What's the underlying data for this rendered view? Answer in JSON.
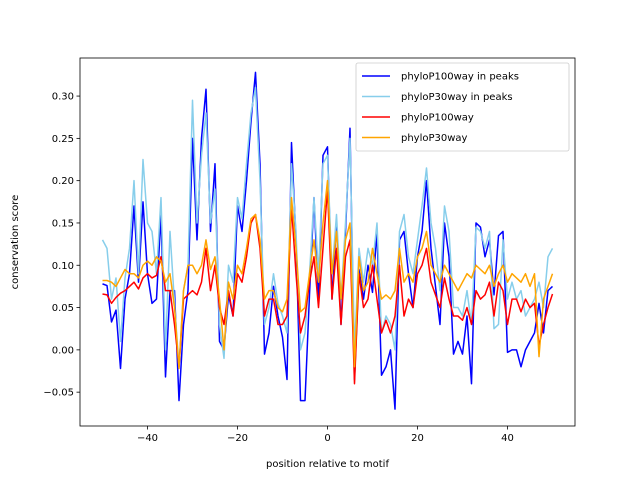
{
  "chart_data": {
    "type": "line",
    "title": "",
    "xlabel": "position relative to motif",
    "ylabel": "conservation score",
    "xlim": [
      -55,
      55
    ],
    "ylim": [
      -0.09,
      0.345
    ],
    "xticks": [
      -40,
      -20,
      0,
      20,
      40
    ],
    "xtick_labels": [
      "−40",
      "−20",
      "0",
      "20",
      "40"
    ],
    "yticks": [
      -0.05,
      0.0,
      0.05,
      0.1,
      0.15,
      0.2,
      0.25,
      0.3
    ],
    "ytick_labels": [
      "−0.05",
      "0.00",
      "0.05",
      "0.10",
      "0.15",
      "0.20",
      "0.25",
      "0.30"
    ],
    "grid": false,
    "legend_position": "top-right",
    "x_start": -50,
    "x_step": 1,
    "series": [
      {
        "name": "phyloP100way in peaks",
        "color": "#0000ff",
        "values": [
          0.078,
          0.076,
          0.033,
          0.047,
          -0.022,
          0.06,
          0.09,
          0.17,
          0.08,
          0.175,
          0.09,
          0.055,
          0.06,
          0.16,
          -0.032,
          0.07,
          0.07,
          -0.06,
          0.03,
          0.07,
          0.25,
          0.13,
          0.25,
          0.308,
          0.14,
          0.22,
          0.01,
          0.0,
          0.065,
          0.04,
          0.17,
          0.14,
          0.2,
          0.27,
          0.328,
          0.22,
          -0.005,
          0.02,
          0.075,
          0.04,
          0.015,
          -0.035,
          0.245,
          0.13,
          -0.06,
          -0.06,
          0.065,
          0.18,
          0.06,
          0.23,
          0.24,
          0.06,
          0.15,
          0.03,
          0.14,
          0.262,
          -0.035,
          0.095,
          0.06,
          0.1,
          0.068,
          0.14,
          -0.03,
          -0.02,
          0.0,
          -0.07,
          0.13,
          0.14,
          0.09,
          0.05,
          0.11,
          0.14,
          0.2,
          0.12,
          0.075,
          0.03,
          0.15,
          0.11,
          -0.005,
          0.01,
          -0.005,
          0.04,
          -0.04,
          0.15,
          0.145,
          0.11,
          0.13,
          0.065,
          0.135,
          0.14,
          -0.003,
          0.0,
          0.0,
          -0.02,
          0.0,
          0.01,
          0.02,
          0.055,
          0.02,
          0.07,
          0.075
        ]
      },
      {
        "name": "phyloP30way in peaks",
        "color": "#87ceeb",
        "values": [
          0.13,
          0.12,
          0.06,
          0.085,
          0.01,
          0.085,
          0.12,
          0.2,
          0.09,
          0.225,
          0.15,
          0.14,
          0.09,
          0.18,
          0.0,
          0.14,
          0.055,
          -0.02,
          0.07,
          0.1,
          0.295,
          0.15,
          0.23,
          0.28,
          0.15,
          0.19,
          0.03,
          -0.01,
          0.1,
          0.08,
          0.18,
          0.155,
          0.22,
          0.28,
          0.31,
          0.2,
          0.03,
          0.05,
          0.09,
          0.055,
          0.04,
          0.02,
          0.22,
          0.14,
          0.0,
          0.02,
          0.09,
          0.18,
          0.09,
          0.22,
          0.23,
          0.09,
          0.16,
          0.06,
          0.15,
          0.25,
          0.0,
          0.12,
          0.08,
          0.12,
          0.1,
          0.15,
          0.02,
          0.04,
          0.03,
          0.0,
          0.14,
          0.16,
          0.11,
          0.09,
          0.13,
          0.17,
          0.215,
          0.15,
          0.12,
          0.07,
          0.17,
          0.14,
          0.05,
          0.05,
          0.04,
          0.07,
          0.03,
          0.145,
          0.14,
          0.12,
          0.14,
          0.025,
          0.03,
          0.13,
          0.06,
          0.08,
          0.06,
          0.07,
          0.04,
          0.05,
          0.06,
          0.08,
          0.05,
          0.11,
          0.12
        ]
      },
      {
        "name": "phyloP100way",
        "color": "#ff0000",
        "values": [
          0.066,
          0.065,
          0.055,
          0.062,
          0.067,
          0.07,
          0.075,
          0.08,
          0.072,
          0.085,
          0.09,
          0.085,
          0.088,
          0.11,
          0.07,
          0.07,
          0.03,
          -0.02,
          0.06,
          0.065,
          0.07,
          0.065,
          0.08,
          0.12,
          0.07,
          0.1,
          0.05,
          0.03,
          0.07,
          0.04,
          0.09,
          0.08,
          0.11,
          0.15,
          0.16,
          0.12,
          0.04,
          0.06,
          0.06,
          0.03,
          0.03,
          0.04,
          0.17,
          0.09,
          0.02,
          0.04,
          0.08,
          0.11,
          0.05,
          0.12,
          0.19,
          0.06,
          0.12,
          0.03,
          0.11,
          0.13,
          -0.04,
          0.09,
          0.05,
          0.06,
          0.1,
          0.06,
          0.02,
          0.035,
          0.02,
          0.04,
          0.1,
          0.04,
          0.06,
          0.05,
          0.09,
          0.1,
          0.12,
          0.08,
          0.065,
          0.05,
          0.085,
          0.06,
          0.04,
          0.04,
          0.035,
          0.05,
          0.03,
          0.07,
          0.06,
          0.065,
          0.08,
          0.04,
          0.08,
          0.07,
          0.03,
          0.06,
          0.06,
          0.045,
          0.06,
          0.05,
          0.055,
          0.005,
          0.03,
          0.05,
          0.066
        ]
      },
      {
        "name": "phyloP30way",
        "color": "#ffa500",
        "values": [
          0.082,
          0.082,
          0.08,
          0.075,
          0.085,
          0.095,
          0.09,
          0.09,
          0.085,
          0.1,
          0.105,
          0.1,
          0.11,
          0.105,
          0.08,
          0.09,
          0.05,
          -0.022,
          0.07,
          0.1,
          0.1,
          0.09,
          0.1,
          0.13,
          0.095,
          0.11,
          0.06,
          0.0,
          0.08,
          0.06,
          0.1,
          0.09,
          0.12,
          0.155,
          0.16,
          0.13,
          0.06,
          0.07,
          0.07,
          0.05,
          0.045,
          0.06,
          0.18,
          0.12,
          0.045,
          0.05,
          0.09,
          0.13,
          0.08,
          0.15,
          0.2,
          0.09,
          0.14,
          0.06,
          0.13,
          0.15,
          -0.02,
          0.11,
          0.07,
          0.08,
          0.12,
          0.09,
          0.06,
          0.065,
          0.06,
          0.07,
          0.12,
          0.08,
          0.09,
          0.08,
          0.11,
          0.12,
          0.14,
          0.1,
          0.09,
          0.08,
          0.1,
          0.09,
          0.08,
          0.07,
          0.08,
          0.09,
          0.085,
          0.1,
          0.095,
          0.09,
          0.1,
          0.075,
          0.09,
          0.1,
          0.08,
          0.09,
          0.085,
          0.08,
          0.09,
          0.075,
          0.09,
          -0.008,
          0.06,
          0.075,
          0.09
        ]
      }
    ]
  }
}
